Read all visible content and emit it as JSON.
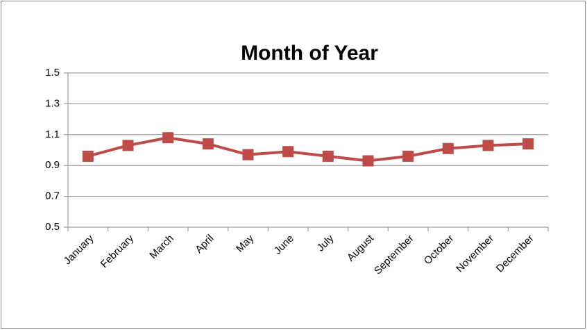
{
  "chart_data": {
    "type": "line",
    "title": "Month of Year",
    "categories": [
      "January",
      "February",
      "March",
      "April",
      "May",
      "June",
      "July",
      "August",
      "September",
      "October",
      "November",
      "December"
    ],
    "series": [
      {
        "name": "Month of Year",
        "color": "#be4b48",
        "values": [
          0.96,
          1.03,
          1.08,
          1.04,
          0.97,
          0.99,
          0.96,
          0.93,
          0.96,
          1.01,
          1.03,
          1.04
        ]
      }
    ],
    "ylim": [
      0.5,
      1.5
    ],
    "yticks": [
      0.5,
      0.7,
      0.9,
      1.1,
      1.3,
      1.5
    ],
    "grid": true,
    "legend": false
  }
}
